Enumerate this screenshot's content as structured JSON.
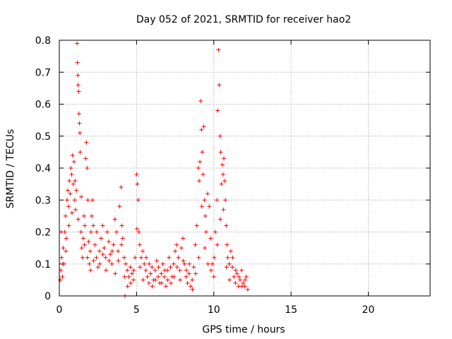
{
  "chart_data": {
    "type": "scatter",
    "title": "Day 052 of 2021, SRMTID for receiver hao2",
    "xlabel": "GPS time / hours",
    "ylabel": "SRMTID / TECUs",
    "xlim": [
      0,
      24
    ],
    "ylim": [
      0,
      0.8
    ],
    "x_ticks": [
      0,
      5,
      10,
      15,
      20
    ],
    "x_tick_labels": [
      "0",
      "5",
      "10",
      "15",
      "20"
    ],
    "y_ticks": [
      0,
      0.1,
      0.2,
      0.3,
      0.4,
      0.5,
      0.6,
      0.7,
      0.8
    ],
    "y_tick_labels": [
      "0",
      "0.1",
      "0.2",
      "0.3",
      "0.4",
      "0.5",
      "0.6",
      "0.7",
      "0.8"
    ],
    "grid": true,
    "marker": "+",
    "marker_color": "#ff0000",
    "series": [
      {
        "name": "SRMTID",
        "points": [
          [
            0.05,
            0.05
          ],
          [
            0.1,
            0.08
          ],
          [
            0.15,
            0.12
          ],
          [
            0.2,
            0.06
          ],
          [
            0.25,
            0.15
          ],
          [
            0.3,
            0.1
          ],
          [
            0.35,
            0.2
          ],
          [
            0.4,
            0.25
          ],
          [
            0.45,
            0.18
          ],
          [
            0.5,
            0.3
          ],
          [
            0.55,
            0.33
          ],
          [
            0.6,
            0.28
          ],
          [
            0.65,
            0.36
          ],
          [
            0.7,
            0.32
          ],
          [
            0.75,
            0.4
          ],
          [
            0.8,
            0.38
          ],
          [
            0.85,
            0.44
          ],
          [
            0.9,
            0.35
          ],
          [
            0.95,
            0.42
          ],
          [
            1.0,
            0.3
          ],
          [
            1.05,
            0.27
          ],
          [
            1.1,
            0.33
          ],
          [
            1.15,
            0.79
          ],
          [
            1.17,
            0.73
          ],
          [
            1.2,
            0.69
          ],
          [
            1.22,
            0.66
          ],
          [
            1.25,
            0.64
          ],
          [
            1.27,
            0.57
          ],
          [
            1.3,
            0.54
          ],
          [
            1.33,
            0.51
          ],
          [
            1.35,
            0.45
          ],
          [
            1.4,
            0.2
          ],
          [
            1.45,
            0.15
          ],
          [
            1.5,
            0.12
          ],
          [
            1.55,
            0.18
          ],
          [
            1.6,
            0.25
          ],
          [
            1.65,
            0.22
          ],
          [
            1.7,
            0.43
          ],
          [
            1.75,
            0.48
          ],
          [
            1.8,
            0.4
          ],
          [
            1.85,
            0.3
          ],
          [
            1.9,
            0.17
          ],
          [
            1.95,
            0.1
          ],
          [
            2.0,
            0.14
          ],
          [
            2.05,
            0.2
          ],
          [
            2.1,
            0.25
          ],
          [
            2.15,
            0.3
          ],
          [
            2.2,
            0.22
          ],
          [
            2.3,
            0.16
          ],
          [
            2.4,
            0.12
          ],
          [
            2.5,
            0.09
          ],
          [
            2.6,
            0.14
          ],
          [
            2.7,
            0.18
          ],
          [
            2.8,
            0.22
          ],
          [
            2.9,
            0.15
          ],
          [
            3.0,
            0.12
          ],
          [
            3.1,
            0.2
          ],
          [
            3.2,
            0.17
          ],
          [
            3.3,
            0.13
          ],
          [
            3.4,
            0.1
          ],
          [
            3.5,
            0.16
          ],
          [
            3.6,
            0.24
          ],
          [
            3.7,
            0.2
          ],
          [
            3.8,
            0.14
          ],
          [
            3.9,
            0.28
          ],
          [
            4.0,
            0.34
          ],
          [
            4.05,
            0.22
          ],
          [
            4.1,
            0.18
          ],
          [
            4.2,
            0.12
          ],
          [
            4.25,
            0.0
          ],
          [
            4.3,
            0.1
          ],
          [
            4.4,
            0.08
          ],
          [
            4.5,
            0.06
          ],
          [
            4.6,
            0.09
          ],
          [
            4.7,
            0.07
          ],
          [
            4.8,
            0.05
          ],
          [
            4.9,
            0.12
          ],
          [
            5.0,
            0.38
          ],
          [
            5.05,
            0.35
          ],
          [
            5.1,
            0.3
          ],
          [
            5.15,
            0.2
          ],
          [
            5.2,
            0.16
          ],
          [
            5.3,
            0.12
          ],
          [
            5.4,
            0.14
          ],
          [
            5.5,
            0.1
          ],
          [
            5.6,
            0.08
          ],
          [
            5.7,
            0.06
          ],
          [
            5.8,
            0.04
          ],
          [
            5.9,
            0.07
          ],
          [
            6.0,
            0.09
          ],
          [
            6.1,
            0.05
          ],
          [
            6.2,
            0.08
          ],
          [
            6.3,
            0.11
          ],
          [
            6.4,
            0.06
          ],
          [
            6.5,
            0.04
          ],
          [
            6.6,
            0.07
          ],
          [
            6.7,
            0.1
          ],
          [
            6.8,
            0.06
          ],
          [
            6.9,
            0.03
          ],
          [
            7.0,
            0.08
          ],
          [
            7.1,
            0.12
          ],
          [
            7.2,
            0.09
          ],
          [
            7.3,
            0.06
          ],
          [
            7.4,
            0.1
          ],
          [
            7.5,
            0.14
          ],
          [
            7.6,
            0.16
          ],
          [
            7.7,
            0.12
          ],
          [
            7.8,
            0.08
          ],
          [
            7.9,
            0.15
          ],
          [
            8.0,
            0.18
          ],
          [
            8.1,
            0.1
          ],
          [
            8.2,
            0.06
          ],
          [
            8.3,
            0.04
          ],
          [
            8.4,
            0.07
          ],
          [
            8.5,
            0.03
          ],
          [
            8.6,
            0.05
          ],
          [
            8.7,
            0.09
          ],
          [
            8.8,
            0.16
          ],
          [
            8.9,
            0.22
          ],
          [
            9.0,
            0.4
          ],
          [
            9.05,
            0.36
          ],
          [
            9.1,
            0.42
          ],
          [
            9.15,
            0.61
          ],
          [
            9.2,
            0.52
          ],
          [
            9.25,
            0.45
          ],
          [
            9.3,
            0.38
          ],
          [
            9.35,
            0.53
          ],
          [
            9.4,
            0.3
          ],
          [
            9.45,
            0.25
          ],
          [
            9.5,
            0.2
          ],
          [
            9.6,
            0.32
          ],
          [
            9.7,
            0.28
          ],
          [
            9.8,
            0.18
          ],
          [
            9.9,
            0.1
          ],
          [
            10.0,
            0.06
          ],
          [
            10.1,
            0.2
          ],
          [
            10.2,
            0.3
          ],
          [
            10.25,
            0.58
          ],
          [
            10.3,
            0.77
          ],
          [
            10.35,
            0.66
          ],
          [
            10.4,
            0.5
          ],
          [
            10.45,
            0.45
          ],
          [
            10.5,
            0.35
          ],
          [
            10.55,
            0.41
          ],
          [
            10.6,
            0.38
          ],
          [
            10.65,
            0.43
          ],
          [
            10.7,
            0.36
          ],
          [
            10.75,
            0.3
          ],
          [
            10.8,
            0.22
          ],
          [
            10.85,
            0.16
          ],
          [
            10.9,
            0.12
          ],
          [
            11.0,
            0.1
          ],
          [
            11.1,
            0.14
          ],
          [
            11.2,
            0.09
          ],
          [
            11.3,
            0.06
          ],
          [
            11.4,
            0.04
          ],
          [
            11.5,
            0.07
          ],
          [
            11.6,
            0.03
          ],
          [
            11.7,
            0.05
          ],
          [
            11.8,
            0.08
          ],
          [
            11.9,
            0.04
          ],
          [
            12.0,
            0.03
          ],
          [
            12.1,
            0.06
          ],
          [
            12.2,
            0.02
          ],
          [
            0.12,
            0.2
          ],
          [
            0.22,
            0.1
          ],
          [
            0.42,
            0.14
          ],
          [
            0.62,
            0.22
          ],
          [
            0.82,
            0.26
          ],
          [
            1.02,
            0.36
          ],
          [
            1.22,
            0.24
          ],
          [
            1.42,
            0.31
          ],
          [
            1.62,
            0.16
          ],
          [
            1.82,
            0.12
          ],
          [
            2.02,
            0.08
          ],
          [
            2.22,
            0.11
          ],
          [
            2.42,
            0.2
          ],
          [
            2.62,
            0.1
          ],
          [
            2.82,
            0.13
          ],
          [
            3.02,
            0.08
          ],
          [
            3.22,
            0.11
          ],
          [
            3.42,
            0.14
          ],
          [
            3.62,
            0.07
          ],
          [
            3.82,
            0.11
          ],
          [
            4.02,
            0.16
          ],
          [
            4.22,
            0.06
          ],
          [
            4.42,
            0.03
          ],
          [
            4.62,
            0.04
          ],
          [
            4.82,
            0.08
          ],
          [
            5.02,
            0.21
          ],
          [
            5.22,
            0.09
          ],
          [
            5.42,
            0.05
          ],
          [
            5.62,
            0.12
          ],
          [
            5.82,
            0.1
          ],
          [
            6.02,
            0.03
          ],
          [
            6.22,
            0.05
          ],
          [
            6.42,
            0.09
          ],
          [
            6.62,
            0.04
          ],
          [
            6.82,
            0.08
          ],
          [
            7.02,
            0.05
          ],
          [
            7.22,
            0.04
          ],
          [
            7.42,
            0.06
          ],
          [
            7.62,
            0.09
          ],
          [
            7.82,
            0.05
          ],
          [
            8.02,
            0.11
          ],
          [
            8.22,
            0.08
          ],
          [
            8.42,
            0.1
          ],
          [
            8.62,
            0.02
          ],
          [
            8.82,
            0.07
          ],
          [
            9.02,
            0.12
          ],
          [
            9.22,
            0.28
          ],
          [
            9.42,
            0.15
          ],
          [
            9.62,
            0.1
          ],
          [
            9.82,
            0.08
          ],
          [
            10.02,
            0.12
          ],
          [
            10.22,
            0.16
          ],
          [
            10.42,
            0.24
          ],
          [
            10.62,
            0.27
          ],
          [
            10.82,
            0.09
          ],
          [
            11.02,
            0.05
          ],
          [
            11.22,
            0.12
          ],
          [
            11.42,
            0.08
          ],
          [
            11.62,
            0.06
          ],
          [
            11.82,
            0.03
          ],
          [
            12.02,
            0.05
          ]
        ]
      }
    ]
  }
}
